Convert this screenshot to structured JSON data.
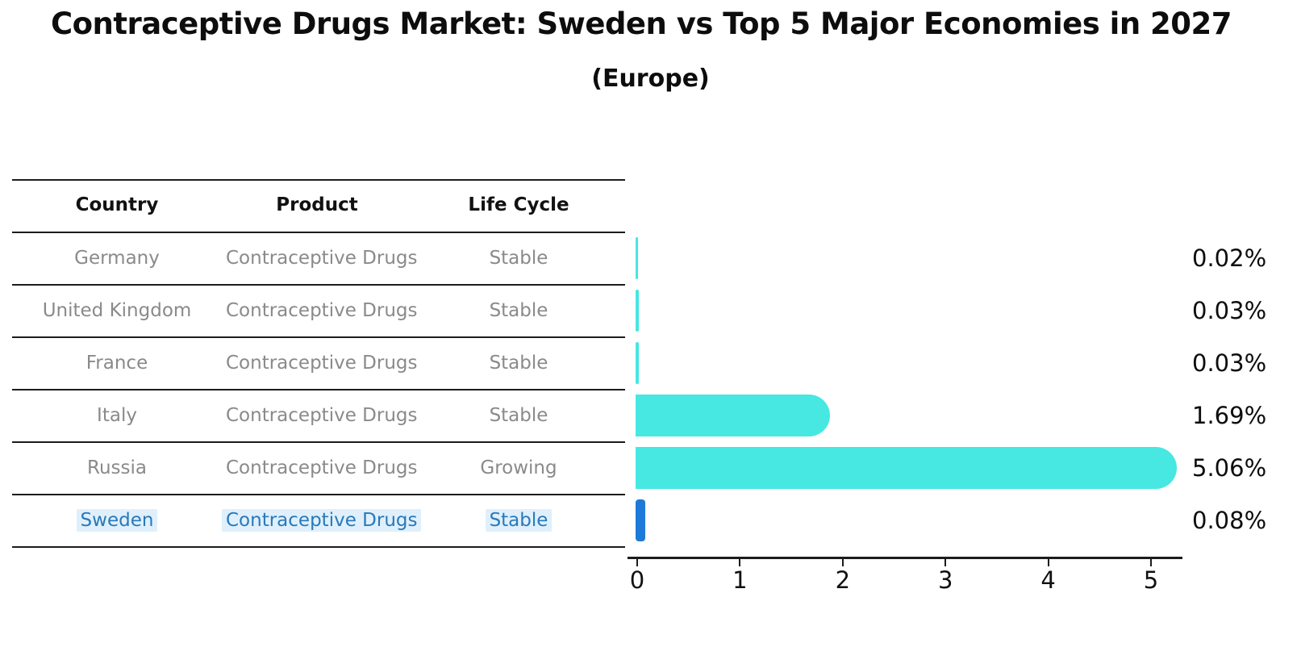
{
  "chart": {
    "title": "Contraceptive Drugs Market: Sweden vs Top 5 Major Economies in 2027",
    "subtitle": "(Europe)"
  },
  "table": {
    "headers": [
      "Country",
      "Product",
      "Life Cycle"
    ],
    "rows": [
      {
        "country": "Germany",
        "product": "Contraceptive Drugs",
        "life_cycle": "Stable",
        "highlighted": false
      },
      {
        "country": "United Kingdom",
        "product": "Contraceptive Drugs",
        "life_cycle": "Stable",
        "highlighted": false
      },
      {
        "country": "France",
        "product": "Contraceptive Drugs",
        "life_cycle": "Stable",
        "highlighted": false
      },
      {
        "country": "Italy",
        "product": "Contraceptive Drugs",
        "life_cycle": "Stable",
        "highlighted": false
      },
      {
        "country": "Russia",
        "product": "Contraceptive Drugs",
        "life_cycle": "Growing",
        "highlighted": false
      },
      {
        "country": "Sweden",
        "product": "Contraceptive Drugs",
        "life_cycle": "Stable",
        "highlighted": true
      }
    ]
  },
  "chart_data": {
    "type": "bar",
    "orientation": "horizontal",
    "title": "Contraceptive Drugs Market: Sweden vs Top 5 Major Economies in 2027 (Europe)",
    "categories": [
      "Germany",
      "United Kingdom",
      "France",
      "Italy",
      "Russia",
      "Sweden"
    ],
    "values": [
      0.02,
      0.03,
      0.03,
      1.69,
      5.06,
      0.08
    ],
    "value_labels": [
      "0.02%",
      "0.03%",
      "0.03%",
      "1.69%",
      "5.06%",
      "0.08%"
    ],
    "x_ticks": [
      "0",
      "1",
      "2",
      "3",
      "4",
      "5"
    ],
    "xlim": [
      0,
      5.4
    ],
    "grid": false,
    "legend": false,
    "highlight_index": 5
  },
  "colors": {
    "bar_cyan": "#47E7E2",
    "bar_blue": "#1E7AD9",
    "highlight_text": "#2979B9",
    "highlight_bg": "#DFF0FC",
    "row_text": "#8A8A8A",
    "header_text": "#111111",
    "line": "#1C1C1C"
  }
}
